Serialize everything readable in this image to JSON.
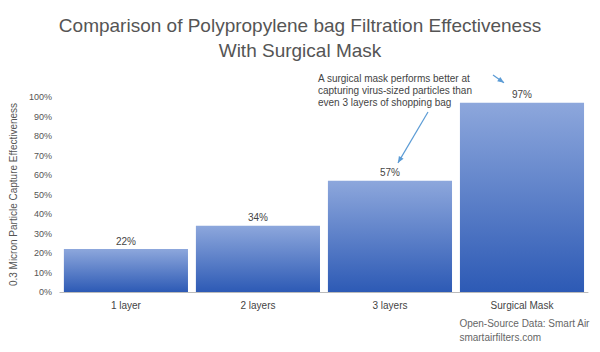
{
  "chart_data": {
    "type": "bar",
    "title": "Comparison of Polypropylene bag Filtration Effectiveness\nWith Surgical Mask",
    "y_label": "0.3 Micron Particle Capture Effectiveness",
    "categories": [
      "1 layer",
      "2 layers",
      "3 layers",
      "Surgical Mask"
    ],
    "values": [
      22,
      34,
      57,
      97
    ],
    "value_labels": [
      "22%",
      "34%",
      "57%",
      "97%"
    ],
    "data_labels": true,
    "color": "#2f5fbf",
    "ylim": [
      0,
      100
    ],
    "yticks": [
      {
        "value": 0,
        "label": "0%"
      },
      {
        "value": 10,
        "label": "10%"
      },
      {
        "value": 20,
        "label": "20%"
      },
      {
        "value": 30,
        "label": "30%"
      },
      {
        "value": 40,
        "label": "40%"
      },
      {
        "value": 50,
        "label": "50%"
      },
      {
        "value": 60,
        "label": "60%"
      },
      {
        "value": 70,
        "label": "70%"
      },
      {
        "value": 80,
        "label": "80%"
      },
      {
        "value": 90,
        "label": "90%"
      },
      {
        "value": 100,
        "label": "100%"
      }
    ],
    "grid": false,
    "annotation": "A surgical mask performs better at\ncapturing virus-sized particles than\neven 3 layers of shopping bag",
    "source": "Open-Source Data: Smart Air\nsmartairfilters.com"
  }
}
